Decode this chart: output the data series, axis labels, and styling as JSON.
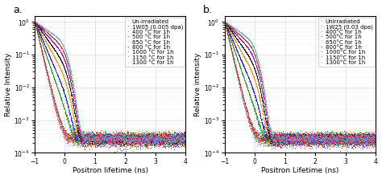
{
  "panel_a_label": "a.",
  "panel_b_label": "b.",
  "xlabel_a": "Positron lifetime (ns)",
  "xlabel_b": "Positron Lifetime (ns)",
  "ylabel_a": "Relative Intensity",
  "ylabel_b": "Relative intensity",
  "xlim": [
    -1,
    4
  ],
  "ylim": [
    0.0001,
    1.5
  ],
  "xticks": [
    -1,
    0,
    1,
    2,
    3,
    4
  ],
  "legend_a_title": "",
  "legend_a": [
    {
      "label": "Un-irradiated",
      "color": "#888888"
    },
    {
      "label": "1W05 (0.005 dpa)",
      "color": "#cc2222"
    },
    {
      "label": "400 °C for 1h",
      "color": "#228B22"
    },
    {
      "label": "500 °C for 1h",
      "color": "#1111cc"
    },
    {
      "label": "650 °C for 1h",
      "color": "#FF8C00"
    },
    {
      "label": "800 °C for 1h",
      "color": "#000000"
    },
    {
      "label": "1000 °C for 1h",
      "color": "#9900AA"
    },
    {
      "label": "1150 °C for 1h",
      "color": "#cc3333"
    },
    {
      "label": "1300 °C for 1h",
      "color": "#66AADD"
    }
  ],
  "legend_b": [
    {
      "label": "Unirradiated",
      "color": "#888888"
    },
    {
      "label": "1W25 (0.03 dpa)",
      "color": "#cc2222"
    },
    {
      "label": "400°C for 1h",
      "color": "#228B22"
    },
    {
      "label": "500°C for 1h",
      "color": "#1111cc"
    },
    {
      "label": "650°C for 1h",
      "color": "#FF8C00"
    },
    {
      "label": "800°C for 1h",
      "color": "#000000"
    },
    {
      "label": "1000°C for 1h",
      "color": "#9900AA"
    },
    {
      "label": "1150°C for 1h",
      "color": "#cc3333"
    },
    {
      "label": "1300°C for 1h",
      "color": "#66AADD"
    }
  ],
  "taus_a": [
    0.108,
    0.115,
    0.16,
    0.2,
    0.26,
    0.33,
    0.42,
    0.53,
    0.68
  ],
  "taus_b": [
    0.108,
    0.115,
    0.16,
    0.2,
    0.26,
    0.33,
    0.42,
    0.53,
    0.68
  ],
  "sigma": 0.165,
  "noise_floor": 0.00025,
  "n_points": 2000,
  "background": "#ffffff",
  "grid_color": "#bbbbbb",
  "font_size_legend": 5.0,
  "font_size_label": 6.5,
  "font_size_tick": 5.5,
  "font_size_panel": 9.0
}
